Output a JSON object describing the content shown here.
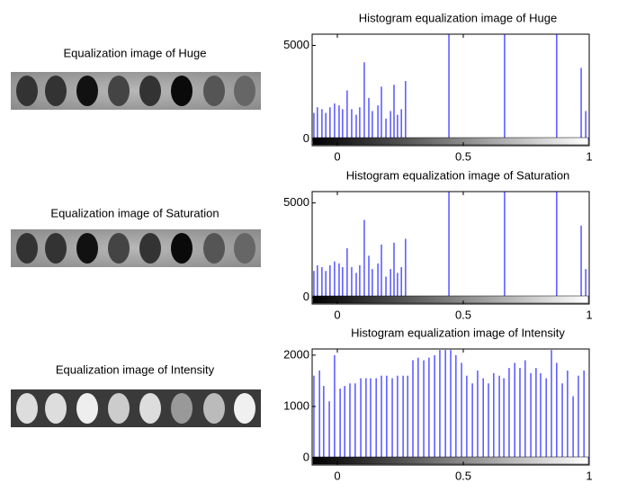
{
  "images": [
    {
      "title": "Equalization  image  of  Huge"
    },
    {
      "title": "Equalization image of Saturation"
    },
    {
      "title": "Equalization image of Intensity"
    }
  ],
  "chart_data": [
    {
      "type": "stem",
      "title": "Histogram equalization image of Huge",
      "color": "#0000ff",
      "xlim": [
        -0.1,
        1.0
      ],
      "xticks": [
        0,
        0.5,
        1
      ],
      "ylim": [
        -350,
        5600
      ],
      "yticks": [
        0,
        5000
      ],
      "x": [
        -0.093,
        -0.079,
        -0.061,
        -0.046,
        -0.029,
        -0.011,
        0.007,
        0.021,
        0.039,
        0.057,
        0.075,
        0.089,
        0.107,
        0.125,
        0.139,
        0.161,
        0.175,
        0.193,
        0.211,
        0.225,
        0.239,
        0.254,
        0.271,
        0.443,
        0.664,
        0.871,
        0.968,
        0.986
      ],
      "values": [
        1400,
        1700,
        1600,
        1400,
        1700,
        1900,
        1800,
        1600,
        2600,
        1600,
        1300,
        1700,
        4100,
        2200,
        1500,
        1800,
        2800,
        1100,
        1500,
        2900,
        1300,
        1600,
        3100,
        5600,
        5600,
        5600,
        3800,
        1500
      ]
    },
    {
      "type": "stem",
      "title": "Histogram equalization image of Saturation",
      "color": "#0000ff",
      "xlim": [
        -0.1,
        1.0
      ],
      "xticks": [
        0,
        0.5,
        1
      ],
      "ylim": [
        -350,
        5600
      ],
      "yticks": [
        0,
        5000
      ],
      "x": [
        -0.093,
        -0.079,
        -0.061,
        -0.046,
        -0.029,
        -0.011,
        0.007,
        0.021,
        0.039,
        0.057,
        0.075,
        0.089,
        0.107,
        0.125,
        0.139,
        0.161,
        0.175,
        0.193,
        0.211,
        0.225,
        0.239,
        0.254,
        0.271,
        0.443,
        0.664,
        0.871,
        0.968,
        0.986
      ],
      "values": [
        1400,
        1700,
        1600,
        1400,
        1700,
        1900,
        1800,
        1600,
        2600,
        1600,
        1300,
        1700,
        4100,
        2200,
        1500,
        1800,
        2800,
        1100,
        1500,
        2900,
        1300,
        1600,
        3100,
        5600,
        5600,
        5600,
        3800,
        1500
      ]
    },
    {
      "type": "stem",
      "title": "Histogram equalization image of Intensity",
      "color": "#0000ff",
      "xlim": [
        -0.1,
        1.0
      ],
      "xticks": [
        0,
        0.5,
        1
      ],
      "ylim": [
        -140,
        2120
      ],
      "yticks": [
        0,
        1000,
        2000
      ],
      "x": [
        -0.093,
        -0.071,
        -0.054,
        -0.032,
        -0.011,
        0.011,
        0.029,
        0.05,
        0.071,
        0.093,
        0.114,
        0.132,
        0.154,
        0.175,
        0.196,
        0.218,
        0.239,
        0.261,
        0.279,
        0.3,
        0.321,
        0.343,
        0.364,
        0.386,
        0.407,
        0.429,
        0.45,
        0.471,
        0.493,
        0.514,
        0.536,
        0.557,
        0.579,
        0.6,
        0.621,
        0.643,
        0.661,
        0.682,
        0.704,
        0.725,
        0.746,
        0.768,
        0.789,
        0.807,
        0.829,
        0.85,
        0.871,
        0.893,
        0.914,
        0.936,
        0.957,
        0.979
      ],
      "values": [
        1600,
        1700,
        1400,
        1100,
        2000,
        1350,
        1400,
        1450,
        1450,
        1550,
        1550,
        1550,
        1550,
        1600,
        1600,
        1550,
        1600,
        1600,
        1600,
        1900,
        1950,
        1900,
        1950,
        2000,
        2100,
        2100,
        2100,
        2000,
        1850,
        1600,
        1450,
        1700,
        1550,
        1450,
        1650,
        1600,
        1550,
        1750,
        1850,
        1750,
        1900,
        1650,
        1750,
        1650,
        1550,
        2100,
        1850,
        1450,
        1700,
        1200,
        1600,
        1700
      ]
    }
  ]
}
